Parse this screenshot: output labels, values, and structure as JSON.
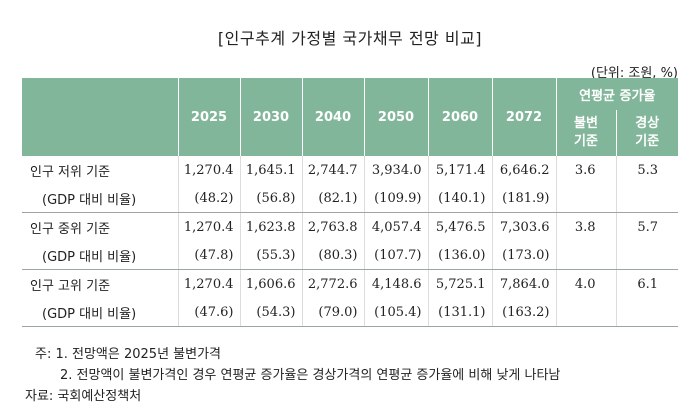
{
  "title": "[인구추계 가정별 국가채무 전망 비교]",
  "unit": "(단위: 조원, %)",
  "header": {
    "years": [
      "2025",
      "2030",
      "2040",
      "2050",
      "2060",
      "2072"
    ],
    "group": "연평균 증가율",
    "sub1_line1": "불변",
    "sub1_line2": "기준",
    "sub2_line1": "경상",
    "sub2_line2": "기준"
  },
  "rows": [
    {
      "label": "인구 저위 기준",
      "values": [
        "1,270.4",
        "1,645.1",
        "2,744.7",
        "3,934.0",
        "5,171.4",
        "6,646.2"
      ],
      "rate1": "3.6",
      "rate2": "5.3",
      "sublabel": "(GDP 대비 비율)",
      "ratios": [
        "(48.2)",
        "(56.8)",
        "(82.1)",
        "(109.9)",
        "(140.1)",
        "(181.9)"
      ]
    },
    {
      "label": "인구 중위 기준",
      "values": [
        "1,270.4",
        "1,623.8",
        "2,763.8",
        "4,057.4",
        "5,476.5",
        "7,303.6"
      ],
      "rate1": "3.8",
      "rate2": "5.7",
      "sublabel": "(GDP 대비 비율)",
      "ratios": [
        "(47.8)",
        "(55.3)",
        "(80.3)",
        "(107.7)",
        "(136.0)",
        "(173.0)"
      ]
    },
    {
      "label": "인구 고위 기준",
      "values": [
        "1,270.4",
        "1,606.6",
        "2,772.6",
        "4,148.6",
        "5,725.1",
        "7,864.0"
      ],
      "rate1": "4.0",
      "rate2": "6.1",
      "sublabel": "(GDP 대비 비율)",
      "ratios": [
        "(47.6)",
        "(54.3)",
        "(79.0)",
        "(105.4)",
        "(131.1)",
        "(163.2)"
      ]
    }
  ],
  "notes": {
    "n1": "주: 1. 전망액은 2025년 불변가격",
    "n2": "2. 전망액이 불변가격인 경우 연평균 증가율은 경상가격의 연평균 증가율에 비해 낮게 나타남",
    "source": "자료: 국회예산정책처"
  }
}
